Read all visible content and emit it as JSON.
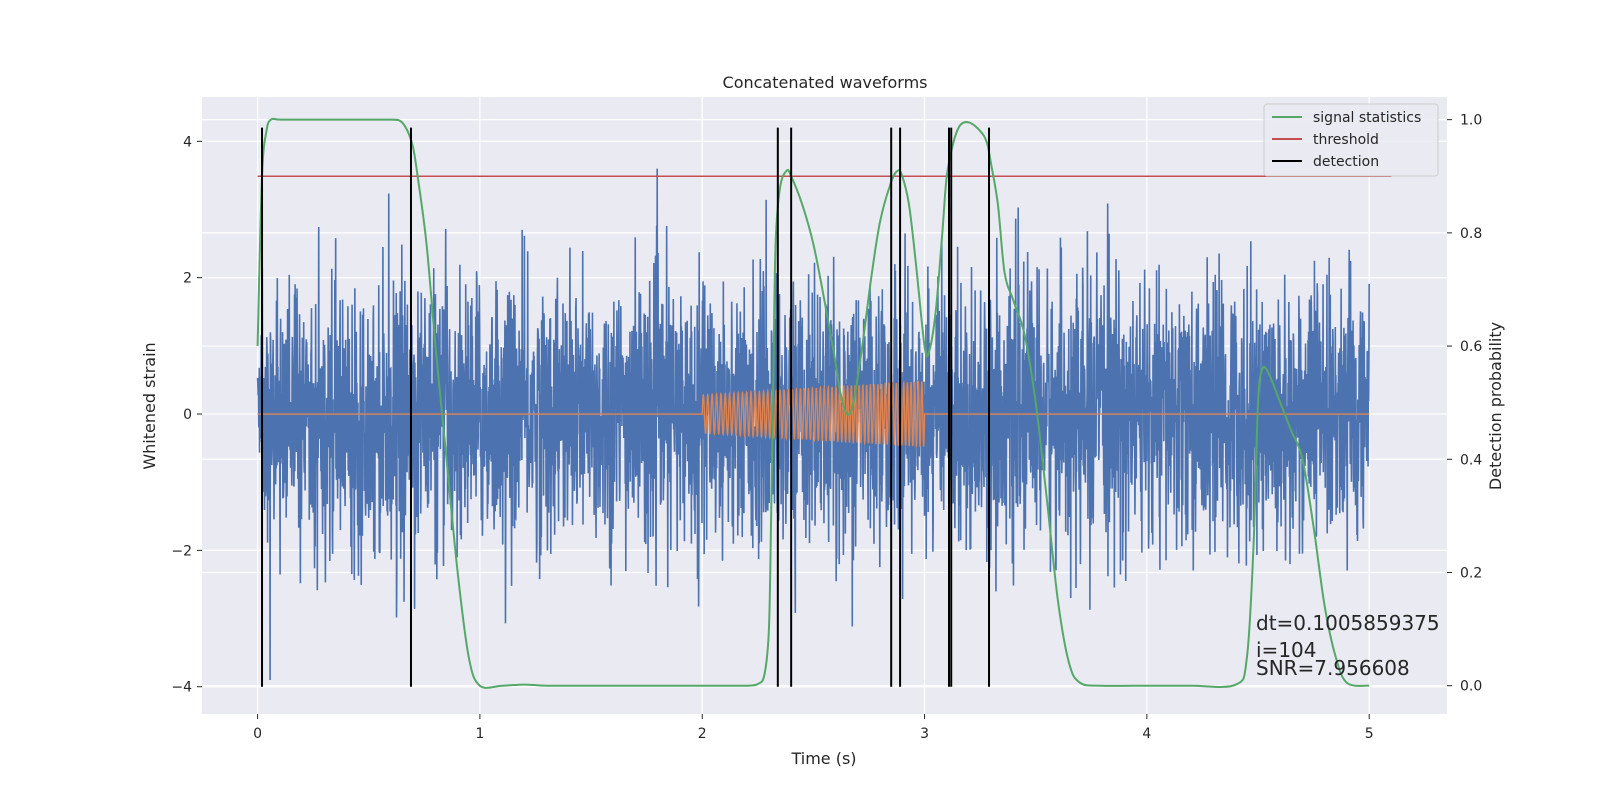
{
  "chart_data": {
    "type": "line",
    "title": "Concatenated waveforms",
    "xlabel": "Time (s)",
    "ylabel": "Whitened strain",
    "ylabel_right": "Detection probability",
    "xlim": [
      -0.25,
      5.35
    ],
    "ylim": [
      -4.4,
      4.65
    ],
    "ylim_right": [
      -0.05,
      1.04
    ],
    "xticks": [
      0,
      1,
      2,
      3,
      4,
      5
    ],
    "yticks": [
      -4,
      -2,
      0,
      2,
      4
    ],
    "yticks_right": [
      0.0,
      0.2,
      0.4,
      0.6,
      0.8,
      1.0
    ],
    "grid": true,
    "legend_position": "top-right",
    "colors": {
      "background": "#eaeaf2",
      "noise": "#4c72b0",
      "injection": "#dd8452",
      "signal_statistics": "#55a868",
      "threshold": "#c44e52",
      "detection": "#000000"
    },
    "series": [
      {
        "name": "signal statistics",
        "axis": "right",
        "x": [
          0.0,
          0.02,
          0.04,
          0.06,
          0.1,
          0.2,
          0.4,
          0.6,
          0.64,
          0.66,
          0.68,
          0.7,
          0.72,
          0.76,
          0.8,
          0.85,
          0.9,
          0.95,
          1.0,
          1.1,
          1.2,
          1.3,
          1.5,
          1.8,
          2.0,
          2.1,
          2.2,
          2.25,
          2.28,
          2.3,
          2.31,
          2.32,
          2.33,
          2.35,
          2.38,
          2.4,
          2.45,
          2.5,
          2.55,
          2.6,
          2.62,
          2.65,
          2.68,
          2.72,
          2.76,
          2.8,
          2.85,
          2.88,
          2.9,
          2.93,
          2.96,
          3.0,
          3.02,
          3.05,
          3.08,
          3.1,
          3.13,
          3.16,
          3.2,
          3.25,
          3.28,
          3.3,
          3.33,
          3.36,
          3.4,
          3.45,
          3.5,
          3.55,
          3.6,
          3.65,
          3.7,
          3.8,
          4.0,
          4.2,
          4.4,
          4.45,
          4.48,
          4.5,
          4.52,
          4.55,
          4.6,
          4.65,
          4.7,
          4.75,
          4.8,
          4.85,
          4.9,
          5.0
        ],
        "values": [
          0.6,
          0.9,
          0.98,
          1.0,
          1.0,
          1.0,
          1.0,
          1.0,
          0.998,
          0.99,
          0.975,
          0.95,
          0.9,
          0.78,
          0.6,
          0.4,
          0.2,
          0.05,
          0.0,
          0.0,
          0.002,
          0.0,
          0.0,
          0.0,
          0.0,
          0.0,
          0.0,
          0.003,
          0.02,
          0.1,
          0.3,
          0.55,
          0.78,
          0.88,
          0.91,
          0.9,
          0.85,
          0.78,
          0.68,
          0.57,
          0.52,
          0.48,
          0.5,
          0.6,
          0.72,
          0.82,
          0.89,
          0.91,
          0.9,
          0.85,
          0.75,
          0.6,
          0.59,
          0.66,
          0.8,
          0.9,
          0.96,
          0.99,
          0.995,
          0.98,
          0.96,
          0.92,
          0.85,
          0.73,
          0.68,
          0.62,
          0.5,
          0.33,
          0.15,
          0.04,
          0.005,
          0.0,
          0.0,
          0.0,
          0.002,
          0.05,
          0.25,
          0.5,
          0.56,
          0.55,
          0.5,
          0.45,
          0.4,
          0.28,
          0.14,
          0.05,
          0.005,
          0.0
        ]
      },
      {
        "name": "threshold",
        "axis": "right",
        "x": [
          0.0,
          5.1
        ],
        "values": [
          0.9,
          0.9
        ]
      },
      {
        "name": "detection",
        "axis": "left",
        "x": [
          0.02,
          0.69,
          2.34,
          2.4,
          2.85,
          2.89,
          3.11,
          3.12,
          3.29
        ],
        "y_range": [
          -4.0,
          4.2
        ]
      },
      {
        "name": "",
        "axis": "left",
        "description": "whitened noise strain, 0 to 5 s, roughly +/-2.5 with spikes to +/-4"
      },
      {
        "name": "",
        "axis": "left",
        "description": "injected chirp waveform, zero outside 2 to 3 s, amplitude growing from about 0.3 to 0.5"
      }
    ],
    "annotations": [
      "dt=0.1005859375",
      " i=104",
      "SNR=7.956608"
    ]
  }
}
